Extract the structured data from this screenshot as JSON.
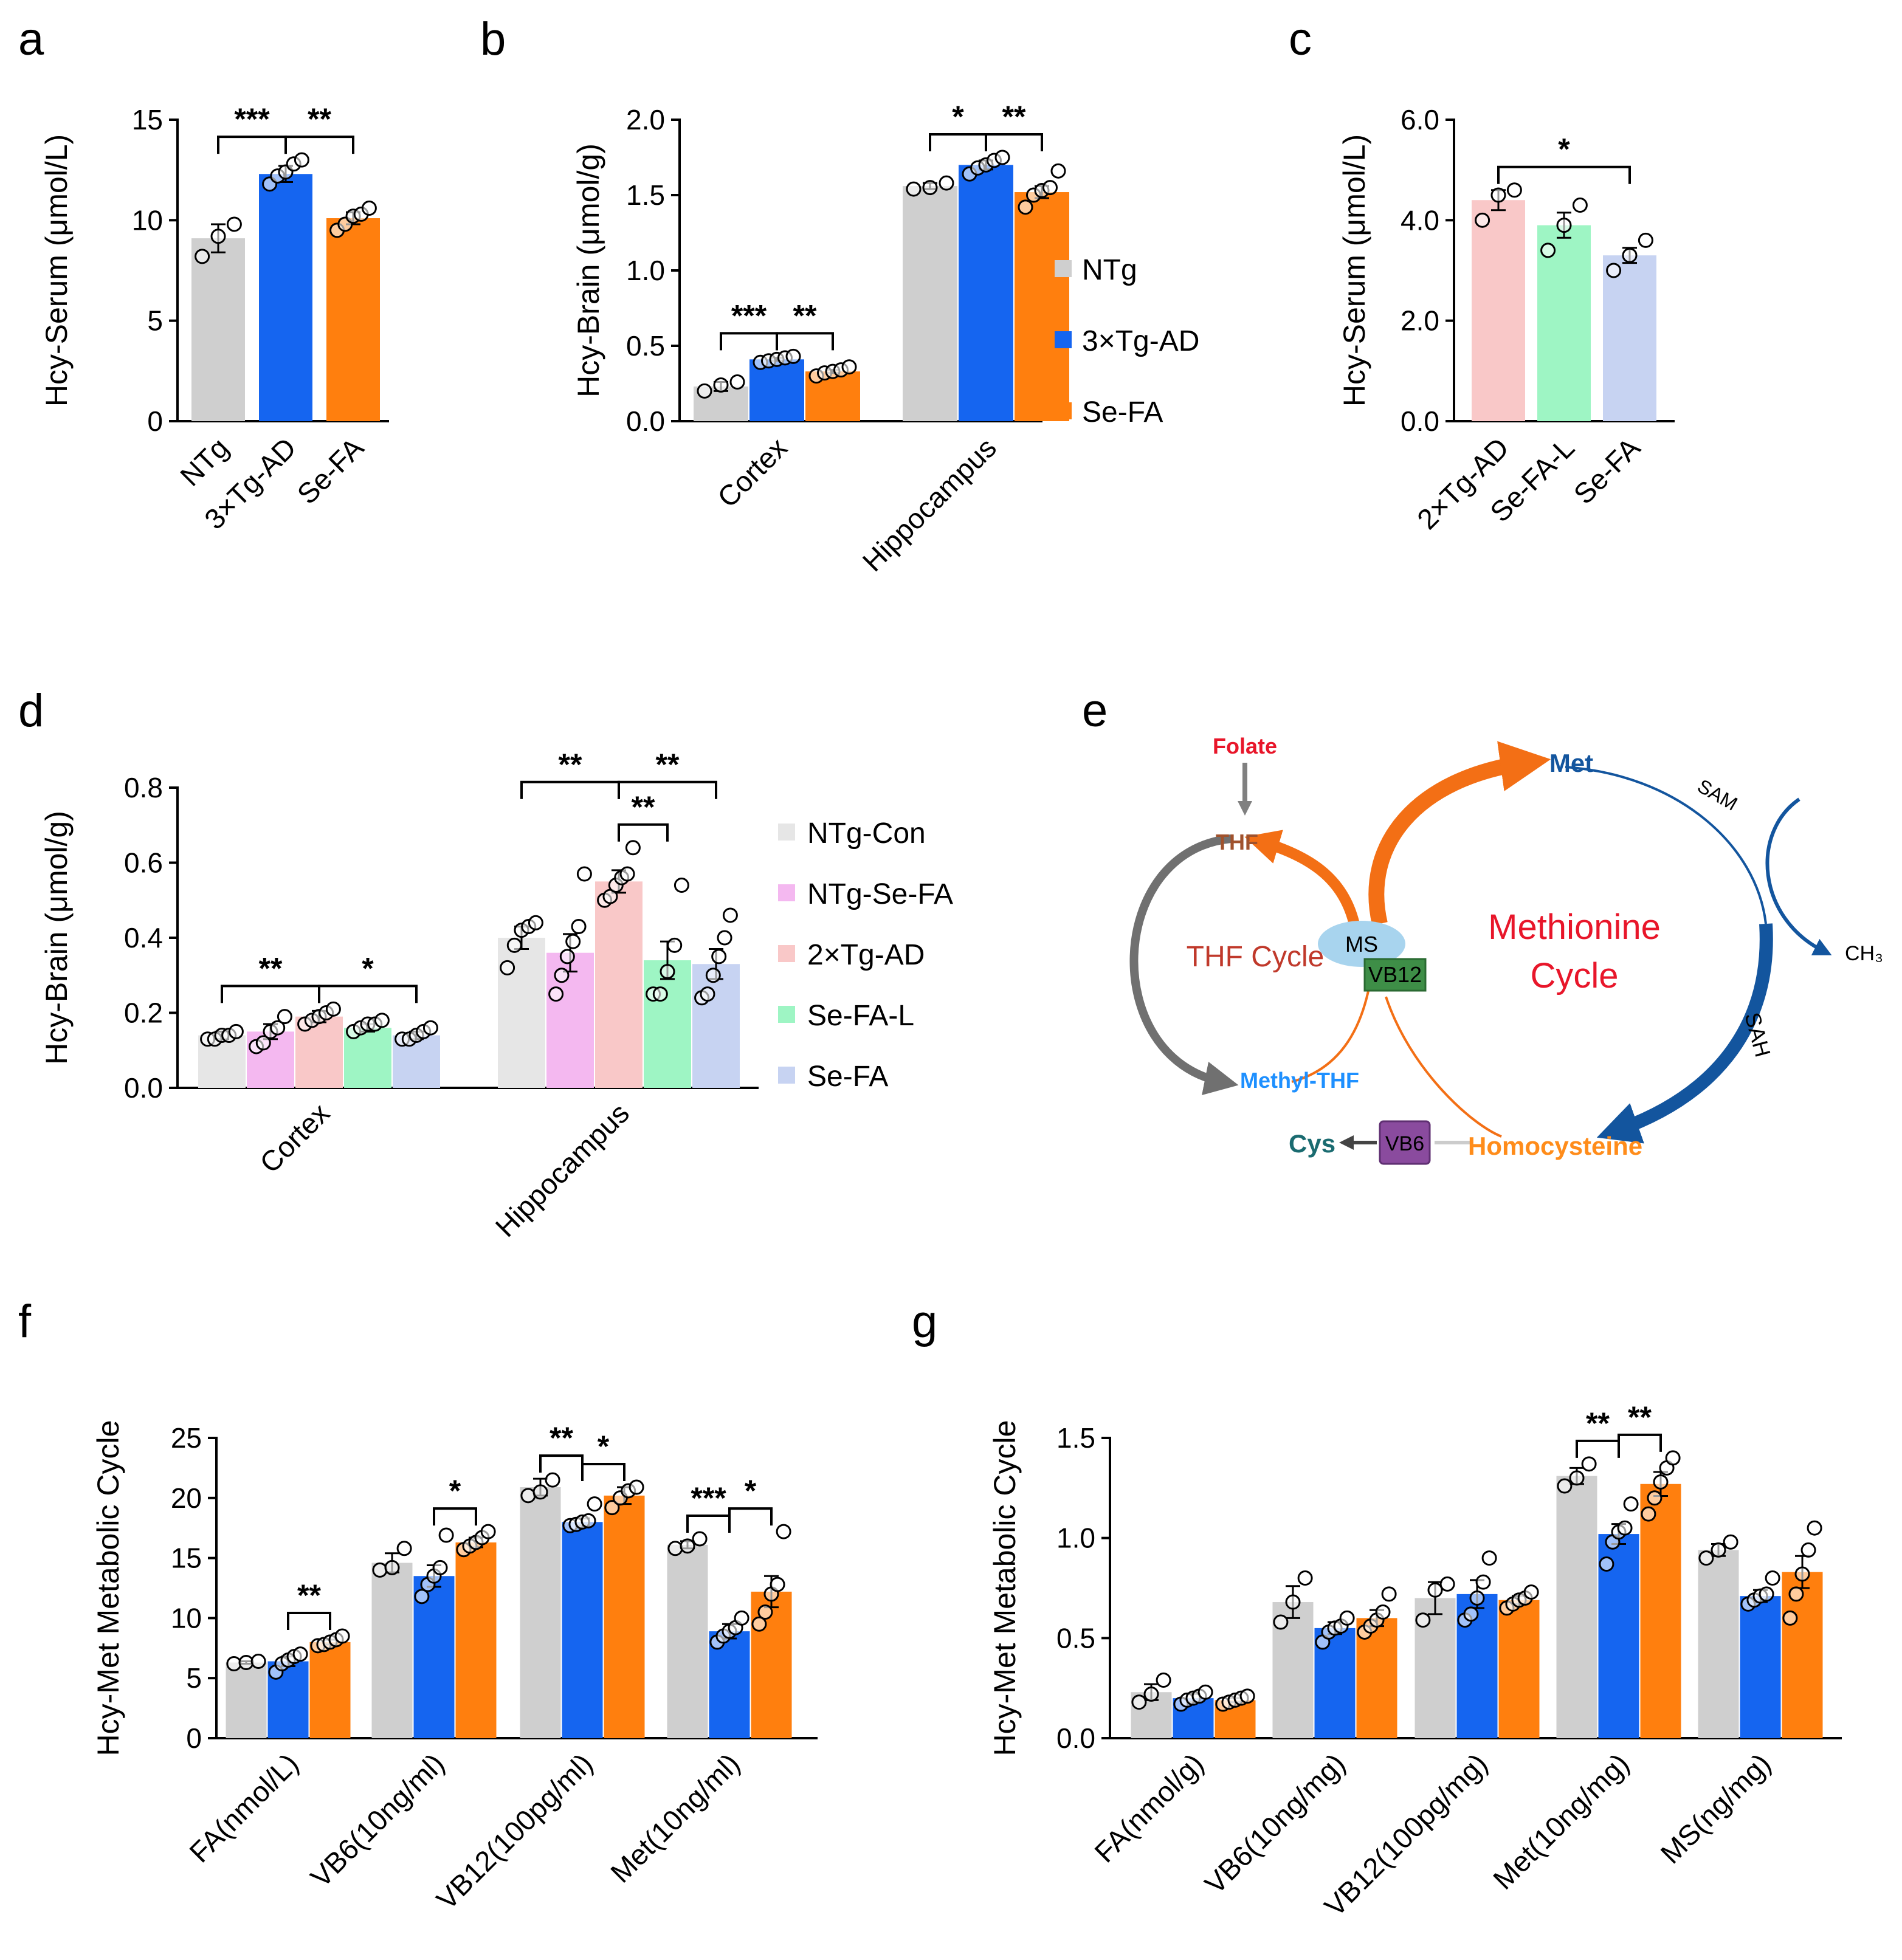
{
  "colors": {
    "ntg": "#cfcfcf",
    "tg": "#1565f0",
    "sefa": "#ff7f0e",
    "ntg_con": "#e6e6e6",
    "ntg_sefa": "#f4b8f0",
    "tg2": "#f9c8c8",
    "sefa_l": "#9ef5c4",
    "sefa_c": "#c7d3f2"
  },
  "panel_letters": [
    "a",
    "b",
    "c",
    "d",
    "e",
    "f",
    "g"
  ],
  "legend_b": [
    "NTg",
    "3×Tg-AD",
    "Se-FA"
  ],
  "legend_d": [
    "NTg-Con",
    "NTg-Se-FA",
    "2×Tg-AD",
    "Se-FA-L",
    "Se-FA"
  ],
  "chart_data": [
    {
      "panel": "a",
      "type": "bar",
      "ylabel": "Hcy-Serum (μmol/L)",
      "ylim": [
        0,
        15
      ],
      "ytick_labels": [
        "0",
        "5",
        "10",
        "15"
      ],
      "categories": [
        "NTg",
        "3×Tg-AD",
        "Se-FA"
      ],
      "values": [
        9.1,
        12.3,
        10.1
      ],
      "errors": [
        0.7,
        0.4,
        0.3
      ],
      "points": [
        [
          8.2,
          9.2,
          9.8
        ],
        [
          11.8,
          12.2,
          12.4,
          12.8,
          13.0
        ],
        [
          9.5,
          9.8,
          10.2,
          10.3,
          10.6
        ]
      ],
      "colors": [
        "#cfcfcf",
        "#1565f0",
        "#ff7f0e"
      ],
      "significance": [
        {
          "from": 0,
          "to": 1,
          "label": "***"
        },
        {
          "from": 1,
          "to": 2,
          "label": "**"
        }
      ]
    },
    {
      "panel": "b",
      "type": "bar",
      "ylabel": "Hcy-Brain (μmol/g)",
      "ylim": [
        0,
        2.0
      ],
      "ytick_labels": [
        "0.0",
        "0.5",
        "1.0",
        "1.5",
        "2.0"
      ],
      "categories": [
        "Cortex",
        "Hippocampus"
      ],
      "series": [
        {
          "name": "NTg",
          "values": [
            0.23,
            1.56
          ],
          "errors": [
            0.03,
            0.02
          ],
          "points": [
            [
              0.2,
              0.24,
              0.26
            ],
            [
              1.54,
              1.55,
              1.58
            ]
          ]
        },
        {
          "name": "3×Tg-AD",
          "values": [
            0.41,
            1.7
          ],
          "errors": [
            0.01,
            0.03
          ],
          "points": [
            [
              0.39,
              0.4,
              0.41,
              0.42,
              0.43
            ],
            [
              1.64,
              1.68,
              1.7,
              1.73,
              1.75
            ]
          ]
        },
        {
          "name": "Se-FA",
          "values": [
            0.33,
            1.52
          ],
          "errors": [
            0.01,
            0.04
          ],
          "points": [
            [
              0.3,
              0.32,
              0.33,
              0.34,
              0.36
            ],
            [
              1.42,
              1.5,
              1.53,
              1.55,
              1.66
            ]
          ]
        }
      ],
      "significance": [
        {
          "group": 0,
          "from": 0,
          "to": 1,
          "label": "***"
        },
        {
          "group": 0,
          "from": 1,
          "to": 2,
          "label": "**"
        },
        {
          "group": 1,
          "from": 0,
          "to": 1,
          "label": "*"
        },
        {
          "group": 1,
          "from": 1,
          "to": 2,
          "label": "**"
        }
      ]
    },
    {
      "panel": "c",
      "type": "bar",
      "ylabel": "Hcy-Serum (μmol/L)",
      "ylim": [
        0,
        6.0
      ],
      "ytick_labels": [
        "0.0",
        "2.0",
        "4.0",
        "6.0"
      ],
      "categories": [
        "2×Tg-AD",
        "Se-FA-L",
        "Se-FA"
      ],
      "values": [
        4.4,
        3.9,
        3.3
      ],
      "errors": [
        0.2,
        0.25,
        0.15
      ],
      "points": [
        [
          4.0,
          4.5,
          4.6
        ],
        [
          3.4,
          3.9,
          4.3
        ],
        [
          3.0,
          3.3,
          3.6
        ]
      ],
      "colors": [
        "#f9c8c8",
        "#9ef5c4",
        "#c7d3f2"
      ],
      "significance": [
        {
          "from": 0,
          "to": 2,
          "label": "*"
        }
      ]
    },
    {
      "panel": "d",
      "type": "bar",
      "ylabel": "Hcy-Brain (μmol/g)",
      "ylim": [
        0,
        0.8
      ],
      "ytick_labels": [
        "0.0",
        "0.2",
        "0.4",
        "0.6",
        "0.8"
      ],
      "categories": [
        "Cortex",
        "Hippocampus"
      ],
      "series": [
        {
          "name": "NTg-Con",
          "values": [
            0.14,
            0.4
          ],
          "errors": [
            0.01,
            0.03
          ],
          "points": [
            [
              0.13,
              0.13,
              0.14,
              0.14,
              0.15
            ],
            [
              0.32,
              0.38,
              0.42,
              0.43,
              0.44
            ]
          ]
        },
        {
          "name": "NTg-Se-FA",
          "values": [
            0.15,
            0.36
          ],
          "errors": [
            0.02,
            0.05
          ],
          "points": [
            [
              0.11,
              0.12,
              0.15,
              0.16,
              0.19
            ],
            [
              0.25,
              0.3,
              0.35,
              0.39,
              0.43,
              0.57
            ]
          ]
        },
        {
          "name": "2×Tg-AD",
          "values": [
            0.19,
            0.55
          ],
          "errors": [
            0.015,
            0.03
          ],
          "points": [
            [
              0.17,
              0.18,
              0.19,
              0.2,
              0.21
            ],
            [
              0.5,
              0.51,
              0.54,
              0.56,
              0.57,
              0.64
            ]
          ]
        },
        {
          "name": "Se-FA-L",
          "values": [
            0.16,
            0.34
          ],
          "errors": [
            0.01,
            0.05
          ],
          "points": [
            [
              0.15,
              0.16,
              0.17,
              0.17,
              0.18
            ],
            [
              0.25,
              0.25,
              0.31,
              0.38,
              0.54
            ]
          ]
        },
        {
          "name": "Se-FA",
          "values": [
            0.14,
            0.33
          ],
          "errors": [
            0.01,
            0.04
          ],
          "points": [
            [
              0.13,
              0.13,
              0.14,
              0.15,
              0.16
            ],
            [
              0.24,
              0.25,
              0.3,
              0.35,
              0.4,
              0.46
            ]
          ]
        }
      ],
      "significance": [
        {
          "group": 0,
          "from": 0,
          "to": 2,
          "label": "**"
        },
        {
          "group": 0,
          "from": 2,
          "to": 4,
          "label": "*"
        },
        {
          "group": 1,
          "from": 0,
          "to": 2,
          "label": "**"
        },
        {
          "group": 1,
          "from": 2,
          "to": 3,
          "label": "**"
        },
        {
          "group": 1,
          "from": 2,
          "to": 4,
          "label": "**"
        }
      ]
    },
    {
      "panel": "f",
      "type": "bar",
      "ylabel": "Hcy-Met Metabolic Cycle",
      "ylim": [
        0,
        25
      ],
      "ytick_labels": [
        "0",
        "5",
        "10",
        "15",
        "20",
        "25"
      ],
      "categories": [
        "FA(nmol/L)",
        "VB6(10ng/ml)",
        "VB12(100pg/ml)",
        "Met(10ng/ml)"
      ],
      "series": [
        {
          "name": "NTg",
          "values": [
            6.3,
            14.6,
            20.9,
            16.1
          ],
          "errors": [
            0.1,
            0.8,
            0.7,
            0.3
          ],
          "points": [
            [
              6.2,
              6.3,
              6.4
            ],
            [
              14.0,
              14.2,
              15.8
            ],
            [
              20.2,
              20.5,
              21.5
            ],
            [
              15.8,
              16.0,
              16.6
            ]
          ]
        },
        {
          "name": "3×Tg-AD",
          "values": [
            6.4,
            13.5,
            18.0,
            8.9
          ],
          "errors": [
            0.4,
            0.9,
            0.3,
            0.6
          ],
          "points": [
            [
              5.5,
              6.2,
              6.5,
              6.8,
              7.0
            ],
            [
              11.8,
              12.8,
              13.5,
              14.2,
              16.9
            ],
            [
              17.7,
              17.8,
              18.0,
              18.1,
              19.5
            ],
            [
              8.0,
              8.5,
              8.9,
              9.2,
              10.0
            ]
          ]
        },
        {
          "name": "Se-FA",
          "values": [
            8.0,
            16.3,
            20.2,
            12.2
          ],
          "errors": [
            0.2,
            0.4,
            0.7,
            1.3
          ],
          "points": [
            [
              7.7,
              7.8,
              8.0,
              8.2,
              8.5
            ],
            [
              15.7,
              16.0,
              16.3,
              16.7,
              17.2
            ],
            [
              19.2,
              20.0,
              20.6,
              20.9
            ],
            [
              9.5,
              10.5,
              12.0,
              12.8,
              17.2
            ]
          ]
        }
      ],
      "significance": [
        {
          "group": 0,
          "from": 1,
          "to": 2,
          "label": "**"
        },
        {
          "group": 1,
          "from": 1,
          "to": 2,
          "label": "*"
        },
        {
          "group": 2,
          "from": 0,
          "to": 1,
          "label": "**"
        },
        {
          "group": 2,
          "from": 1,
          "to": 2,
          "label": "*"
        },
        {
          "group": 3,
          "from": 0,
          "to": 1,
          "label": "***"
        },
        {
          "group": 3,
          "from": 1,
          "to": 2,
          "label": "*"
        }
      ]
    },
    {
      "panel": "g",
      "type": "bar",
      "ylabel": "Hcy-Met Metabolic Cycle",
      "ylim": [
        0,
        1.5
      ],
      "ytick_labels": [
        "0.0",
        "0.5",
        "1.0",
        "1.5"
      ],
      "categories": [
        "FA(nmol/g)",
        "VB6(10ng/mg)",
        "VB12(100pg/mg)",
        "Met(10ng/mg)",
        "MS(ng/mg)"
      ],
      "series": [
        {
          "name": "NTg",
          "values": [
            0.23,
            0.68,
            0.7,
            1.31,
            0.94
          ],
          "errors": [
            0.04,
            0.08,
            0.08,
            0.04,
            0.03
          ],
          "points": [
            [
              0.18,
              0.22,
              0.29
            ],
            [
              0.58,
              0.68,
              0.8
            ],
            [
              0.59,
              0.74,
              0.77
            ],
            [
              1.26,
              1.3,
              1.37
            ],
            [
              0.9,
              0.94,
              0.98
            ]
          ]
        },
        {
          "name": "3×Tg-AD",
          "values": [
            0.2,
            0.55,
            0.72,
            1.02,
            0.71
          ],
          "errors": [
            0.02,
            0.03,
            0.07,
            0.05,
            0.03
          ],
          "points": [
            [
              0.17,
              0.19,
              0.2,
              0.21,
              0.23
            ],
            [
              0.48,
              0.53,
              0.55,
              0.56,
              0.6
            ],
            [
              0.59,
              0.62,
              0.7,
              0.78,
              0.9
            ],
            [
              0.87,
              0.98,
              1.03,
              1.05,
              1.17
            ],
            [
              0.67,
              0.69,
              0.71,
              0.72,
              0.8
            ]
          ]
        },
        {
          "name": "Se-FA",
          "values": [
            0.19,
            0.6,
            0.69,
            1.27,
            0.83
          ],
          "errors": [
            0.01,
            0.04,
            0.02,
            0.06,
            0.08
          ],
          "points": [
            [
              0.17,
              0.18,
              0.19,
              0.2,
              0.21
            ],
            [
              0.53,
              0.56,
              0.59,
              0.63,
              0.72
            ],
            [
              0.65,
              0.67,
              0.69,
              0.7,
              0.73
            ],
            [
              1.12,
              1.2,
              1.28,
              1.35,
              1.4
            ],
            [
              0.6,
              0.72,
              0.82,
              0.94,
              1.05
            ]
          ]
        }
      ],
      "significance": [
        {
          "group": 3,
          "from": 0,
          "to": 1,
          "label": "**"
        },
        {
          "group": 3,
          "from": 1,
          "to": 2,
          "label": "**"
        }
      ]
    }
  ],
  "diagram": {
    "folate": "Folate",
    "thf": "THF",
    "met": "Met",
    "sam": "SAM",
    "methionine_cycle_1": "Methionine",
    "methionine_cycle_2": "Cycle",
    "ms": "MS",
    "vb12": "VB12",
    "thf_cycle": "THF Cycle",
    "ch3": "CH₃",
    "sah": "SAH",
    "methyl_thf": "Methyl-THF",
    "homocysteine": "Homocysteine",
    "vb6": "VB6",
    "cys": "Cys"
  }
}
